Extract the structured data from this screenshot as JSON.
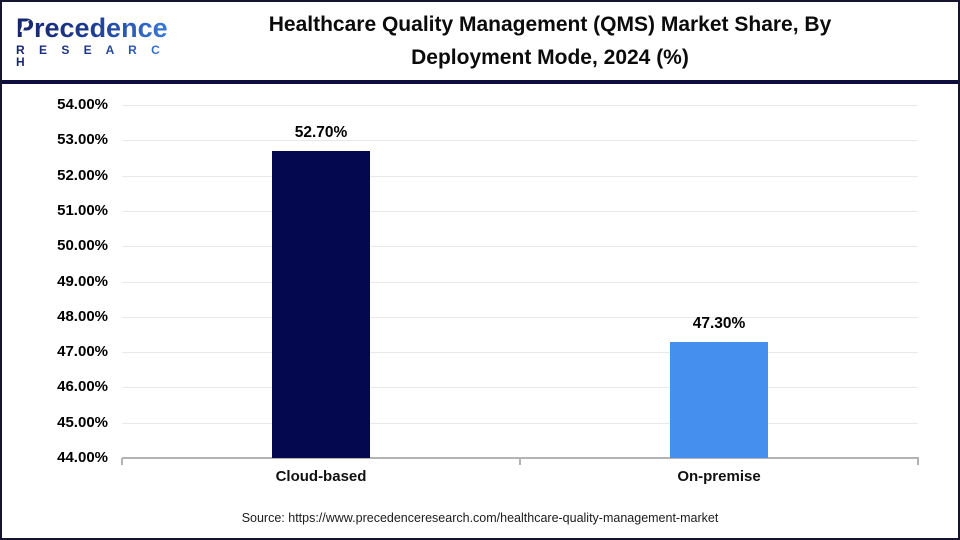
{
  "header": {
    "logo": {
      "brand": "Precedence",
      "subtitle": "R E S E A R C H"
    },
    "title_line1": "Healthcare Quality Management (QMS) Market Share, By",
    "title_line2": "Deployment Mode, 2024 (%)"
  },
  "chart_data": {
    "type": "bar",
    "title": "Healthcare Quality Management (QMS) Market Share, By Deployment Mode, 2024 (%)",
    "categories": [
      "Cloud-based",
      "On-premise"
    ],
    "values": [
      52.7,
      47.3
    ],
    "value_labels": [
      "52.70%",
      "47.30%"
    ],
    "bar_colors": [
      "#04094f",
      "#4590ef"
    ],
    "xlabel": "",
    "ylabel": "",
    "ylim": [
      44,
      54
    ],
    "ytick_step": 1,
    "ytick_labels": [
      "44.00%",
      "45.00%",
      "46.00%",
      "47.00%",
      "48.00%",
      "49.00%",
      "50.00%",
      "51.00%",
      "52.00%",
      "53.00%",
      "54.00%"
    ],
    "grid": true,
    "legend": false
  },
  "footer": {
    "source": "Source: https://www.precedenceresearch.com/healthcare-quality-management-market"
  },
  "colors": {
    "header_rule": "#0e0e3e",
    "grid": "#e8e8e8",
    "axis": "#b3b3b3",
    "navy_bar": "#04094f",
    "blue_bar": "#4590ef"
  }
}
